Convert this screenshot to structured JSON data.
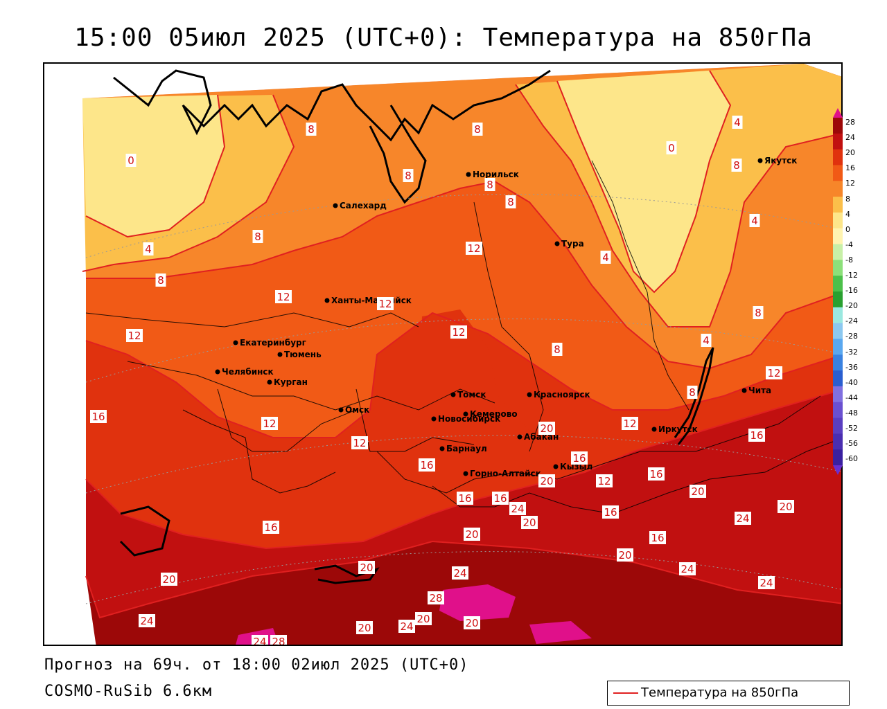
{
  "header": {
    "title": "15:00 05июл 2025 (UTC+0): Температура на 850гПа"
  },
  "footer": {
    "forecast_line": "Прогноз на 69ч. от 18:00 02июл 2025 (UTC+0)",
    "model_line": "COSMO-RuSib 6.6км"
  },
  "legend": {
    "entry": "Температура на 850гПа",
    "line_color": "#e02020"
  },
  "colorbar": {
    "ticks": [
      "28",
      "24",
      "20",
      "16",
      "12",
      "8",
      "4",
      "0",
      "-4",
      "-8",
      "-12",
      "-16",
      "-20",
      "-24",
      "-28",
      "-32",
      "-36",
      "-40",
      "-44",
      "-48",
      "-52",
      "-56",
      "-60"
    ]
  },
  "cities": [
    {
      "name": "Норильск"
    },
    {
      "name": "Якутск"
    },
    {
      "name": "Салехард"
    },
    {
      "name": "Тура"
    },
    {
      "name": "Ханты-Мансийск"
    },
    {
      "name": "Екатеринбург"
    },
    {
      "name": "Тюмень"
    },
    {
      "name": "Челябинск"
    },
    {
      "name": "Курган"
    },
    {
      "name": "Омск"
    },
    {
      "name": "Новосибирск"
    },
    {
      "name": "Томск"
    },
    {
      "name": "Кемерово"
    },
    {
      "name": "Красноярск"
    },
    {
      "name": "Абакан"
    },
    {
      "name": "Барнаул"
    },
    {
      "name": "Горно-Алтайск"
    },
    {
      "name": "Кызыл"
    },
    {
      "name": "Иркутск"
    },
    {
      "name": "Чита"
    }
  ],
  "isotherm_labels": [
    "0",
    "4",
    "8",
    "12",
    "16",
    "20",
    "24",
    "28"
  ],
  "colors": {
    "t_0_4": "#fde68a",
    "t_4_8": "#fbbf4a",
    "t_8_12": "#f7862a",
    "t_12_16": "#f15a16",
    "t_16_20": "#e0320e",
    "t_20_24": "#c11010",
    "t_24_28": "#9c0808",
    "t_28_plus": "#e0108a",
    "isotherm": "#e02020"
  }
}
